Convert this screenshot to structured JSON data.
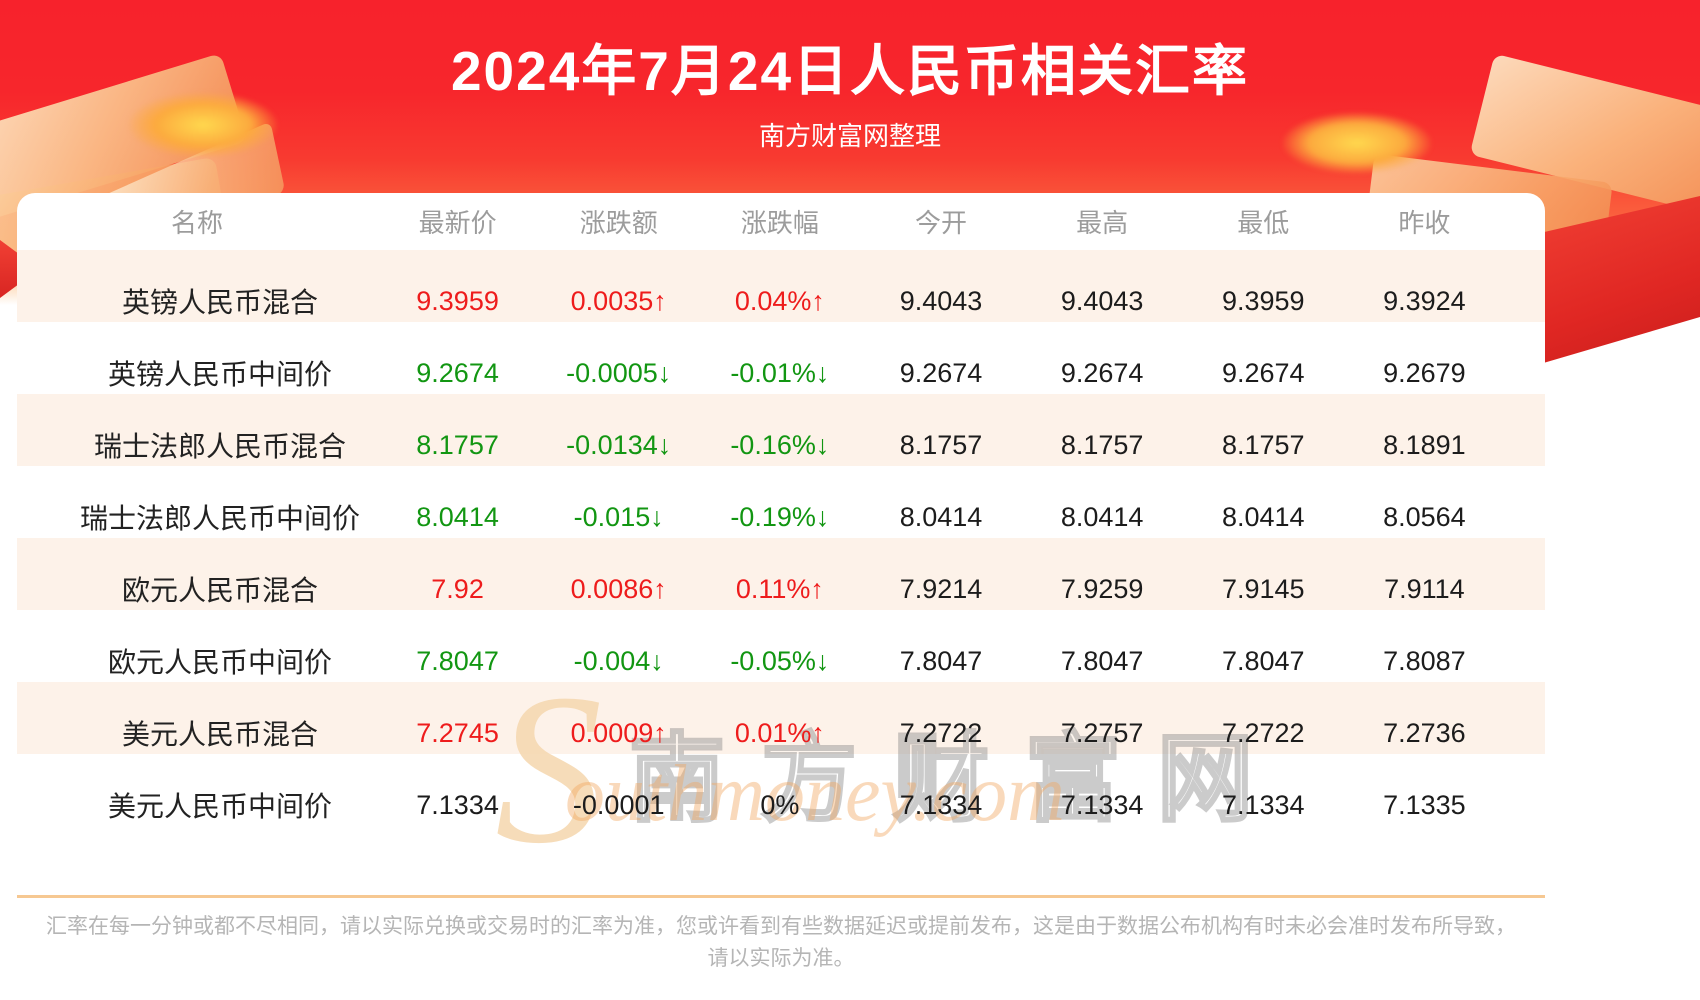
{
  "page": {
    "title": "2024年7月24日人民币相关汇率",
    "subtitle": "南方财富网整理"
  },
  "watermark": {
    "big_letter": "S",
    "cn": "南方财富网",
    "en": "outhmoney.com"
  },
  "table": {
    "columns": [
      "名称",
      "最新价",
      "涨跌额",
      "涨跌幅",
      "今开",
      "最高",
      "最低",
      "昨收"
    ],
    "rows": [
      {
        "name": "英镑人民币混合",
        "latest": "9.3959",
        "change": "0.0035↑",
        "pct": "0.04%↑",
        "open": "9.4043",
        "high": "9.4043",
        "low": "9.3959",
        "prev": "9.3924",
        "trend": "up"
      },
      {
        "name": "英镑人民币中间价",
        "latest": "9.2674",
        "change": "-0.0005↓",
        "pct": "-0.01%↓",
        "open": "9.2674",
        "high": "9.2674",
        "low": "9.2674",
        "prev": "9.2679",
        "trend": "down"
      },
      {
        "name": "瑞士法郎人民币混合",
        "latest": "8.1757",
        "change": "-0.0134↓",
        "pct": "-0.16%↓",
        "open": "8.1757",
        "high": "8.1757",
        "low": "8.1757",
        "prev": "8.1891",
        "trend": "down"
      },
      {
        "name": "瑞士法郎人民币中间价",
        "latest": "8.0414",
        "change": "-0.015↓",
        "pct": "-0.19%↓",
        "open": "8.0414",
        "high": "8.0414",
        "low": "8.0414",
        "prev": "8.0564",
        "trend": "down"
      },
      {
        "name": "欧元人民币混合",
        "latest": "7.92",
        "change": "0.0086↑",
        "pct": "0.11%↑",
        "open": "7.9214",
        "high": "7.9259",
        "low": "7.9145",
        "prev": "7.9114",
        "trend": "up"
      },
      {
        "name": "欧元人民币中间价",
        "latest": "7.8047",
        "change": "-0.004↓",
        "pct": "-0.05%↓",
        "open": "7.8047",
        "high": "7.8047",
        "low": "7.8047",
        "prev": "7.8087",
        "trend": "down"
      },
      {
        "name": "美元人民币混合",
        "latest": "7.2745",
        "change": "0.0009↑",
        "pct": "0.01%↑",
        "open": "7.2722",
        "high": "7.2757",
        "low": "7.2722",
        "prev": "7.2736",
        "trend": "up"
      },
      {
        "name": "美元人民币中间价",
        "latest": "7.1334",
        "change": "-0.0001",
        "pct": "0%",
        "open": "7.1334",
        "high": "7.1334",
        "low": "7.1334",
        "prev": "7.1335",
        "trend": "flat"
      }
    ]
  },
  "footer": {
    "line1": "汇率在每一分钟或都不尽相同，请以实际兑换或交易时的汇率为准，您或许看到有些数据延迟或提前发布，这是由于数据公布机构有时未必会准时发布所导致，",
    "line2": "请以实际为准。"
  },
  "colors": {
    "up": "#ee1c1c",
    "down": "#129612",
    "flat": "#1c1c1c",
    "header_red": "#f7222c",
    "stripe_peach": "#fdf2e9",
    "divider_orange": "#f6c892"
  }
}
